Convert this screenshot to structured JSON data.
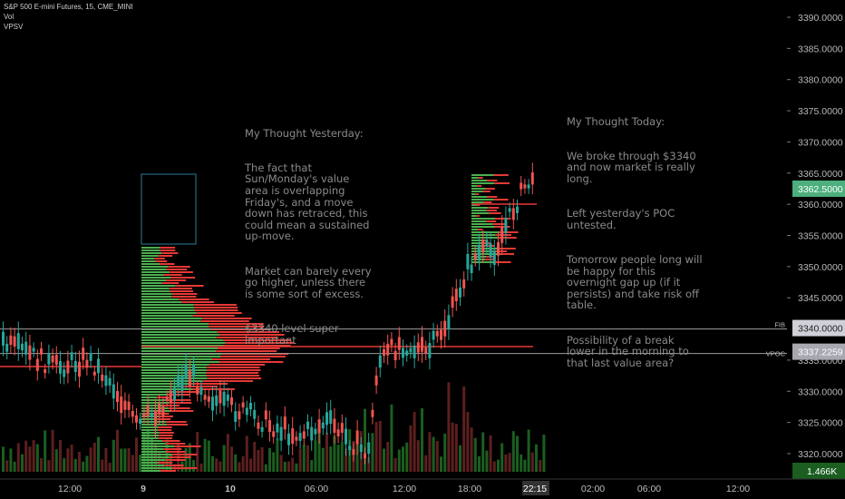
{
  "header": {
    "symbol": "S&P 500 E-mini Futures, 15, CME_MINI",
    "indicator_1": "Vol",
    "indicator_2": "VPSV"
  },
  "notes": {
    "yesterday": {
      "title": "My Thought Yesterday:",
      "paragraphs": [
        "The fact that Sun/Monday's value area is overlapping Friday's, and a move down has retraced, this could mean a sustained up-move.",
        "Market can barely every go higher, unless there is some sort of excess.",
        "$3340 level super important"
      ]
    },
    "today": {
      "title": "My Thought Today:",
      "paragraphs": [
        "We broke through $3340 and now market is really long.",
        "Left yesterday's POC untested.",
        "Tomorrow people long will be happy for this overnight gap up (if it persists) and take risk off table.",
        "Possibility of a break lower in the morning to that last value area?"
      ]
    }
  },
  "price_axis": {
    "ticks": [
      "3390.0000",
      "3385.0000",
      "3380.0000",
      "3375.0000",
      "3370.0000",
      "3365.0000",
      "3360.0000",
      "3355.0000",
      "3350.0000",
      "3345.0000",
      "3335.0000",
      "3330.0000",
      "3325.0000",
      "3320.0000"
    ],
    "tick_values": [
      3390,
      3385,
      3380,
      3375,
      3370,
      3365,
      3360,
      3355,
      3350,
      3345,
      3335,
      3330,
      3325,
      3320
    ],
    "current_price_label": "3362.5000",
    "current_price": 3362.5,
    "fib_label": "3340.0000",
    "fib_value": 3340,
    "fib_tag": "FIB",
    "vpoc_label": "3337.2259",
    "vpoc_value": 3337.2259,
    "vpoc_tag": "VPOC",
    "volume_label": "1.466K"
  },
  "time_axis": {
    "labels": [
      "12:00",
      "9",
      "10",
      "06:00",
      "12:00",
      "18:00",
      "22:15",
      "02:00",
      "06:00",
      "12:00"
    ]
  },
  "colors": {
    "background": "#000000",
    "up": "#26a69a",
    "down": "#ef5350",
    "profile_up": "#4caf50",
    "profile_down": "#e53935",
    "poc_line": "#e53935",
    "fib_line": "#9e9e9e",
    "current_price_bg": "#4caf7d",
    "vpoc_bg": "#a8a8b0",
    "fib_bg": "#d0d0d8",
    "volume_up": "#1b5e20",
    "volume_down": "#5d1f1f",
    "value_area_box": "#2a7c96",
    "text": "#8a8a8a"
  }
}
